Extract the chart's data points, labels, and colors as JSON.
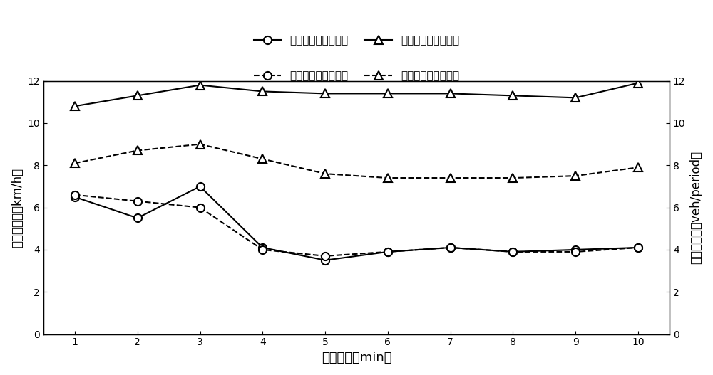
{
  "x": [
    1,
    2,
    3,
    4,
    5,
    6,
    7,
    8,
    9,
    10
  ],
  "beijing_speed_std": [
    6.5,
    5.5,
    7.0,
    4.1,
    3.5,
    3.9,
    4.1,
    3.9,
    4.0,
    4.1
  ],
  "beijing_flow_std": [
    10.8,
    11.3,
    11.8,
    11.5,
    11.4,
    11.4,
    11.4,
    11.3,
    11.2,
    11.9
  ],
  "zhongshan_speed_std": [
    6.6,
    6.3,
    6.0,
    4.0,
    3.7,
    3.9,
    4.1,
    3.9,
    3.9,
    4.1
  ],
  "zhongshan_flow_std": [
    8.1,
    8.7,
    9.0,
    8.3,
    7.6,
    7.4,
    7.4,
    7.4,
    7.5,
    7.9
  ],
  "legend_labels": [
    "北京西路速度标准差",
    "北京西路流量标准差",
    "中山北路速度标准差",
    "中山北路流量标准差"
  ],
  "xlabel": "分析周期（min）",
  "ylabel_left": "速度标准差（km/h）",
  "ylabel_right": "流量标准差（veh/period）",
  "ylim_left": [
    0,
    12
  ],
  "ylim_right": [
    0,
    12
  ],
  "yticks_left": [
    0,
    2,
    4,
    6,
    8,
    10,
    12
  ],
  "yticks_right": [
    0,
    2,
    4,
    6,
    8,
    10,
    12
  ],
  "xticks": [
    1,
    2,
    3,
    4,
    5,
    6,
    7,
    8,
    9,
    10
  ],
  "line_color": "#000000",
  "figsize": [
    10.0,
    5.27
  ],
  "dpi": 100
}
